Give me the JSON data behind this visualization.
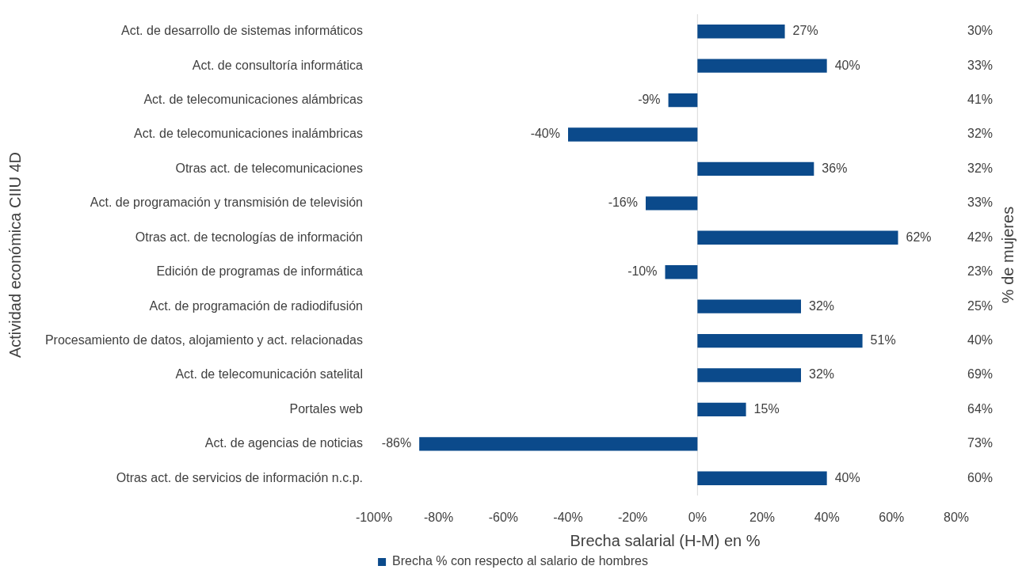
{
  "chart_data": {
    "type": "bar",
    "orientation": "horizontal",
    "categories": [
      "Act. de desarrollo de sistemas informáticos",
      "Act. de consultoría informática",
      "Act. de telecomunicaciones alámbricas",
      "Act. de telecomunicaciones inalámbricas",
      "Otras act. de telecomunicaciones",
      "Act. de programación y transmisión de televisión",
      "Otras act. de tecnologías de información",
      "Edición de programas de informática",
      "Act. de programación de radiodifusión",
      "Procesamiento de datos, alojamiento y act. relacionadas",
      "Act. de telecomunicación satelital",
      "Portales web",
      "Act. de agencias de noticias",
      "Otras act. de servicios de información n.c.p."
    ],
    "y2_categories": [
      "30%",
      "33%",
      "41%",
      "32%",
      "32%",
      "33%",
      "42%",
      "23%",
      "25%",
      "40%",
      "69%",
      "64%",
      "73%",
      "60%"
    ],
    "series": [
      {
        "name": "Brecha % con respecto al salario de hombres",
        "color": "#0b4a8b",
        "values": [
          27,
          40,
          -9,
          -40,
          36,
          -16,
          62,
          -10,
          32,
          51,
          32,
          15,
          -86,
          40
        ],
        "value_labels": [
          "27%",
          "40%",
          "-9%",
          "-40%",
          "36%",
          "-16%",
          "62%",
          "-10%",
          "32%",
          "51%",
          "32%",
          "15%",
          "-86%",
          "40%"
        ]
      }
    ],
    "xlabel": "Brecha salarial (H-M) en %",
    "ylabel": "Actividad económica CIIU 4D",
    "y2label": "% de mujeres",
    "xlim": [
      -100,
      80
    ],
    "xticks": [
      {
        "value": -100,
        "label": "-100%"
      },
      {
        "value": -80,
        "label": "-80%"
      },
      {
        "value": -60,
        "label": "-60%"
      },
      {
        "value": -40,
        "label": "-40%"
      },
      {
        "value": -20,
        "label": "-20%"
      },
      {
        "value": 0,
        "label": "0%"
      },
      {
        "value": 20,
        "label": "20%"
      },
      {
        "value": 40,
        "label": "40%"
      },
      {
        "value": 60,
        "label": "60%"
      },
      {
        "value": 80,
        "label": "80%"
      }
    ],
    "ref_lines": [
      {
        "axis": "x",
        "value": 0,
        "color": "#d9d9d9"
      }
    ],
    "grid": false,
    "legend": "bottom"
  }
}
